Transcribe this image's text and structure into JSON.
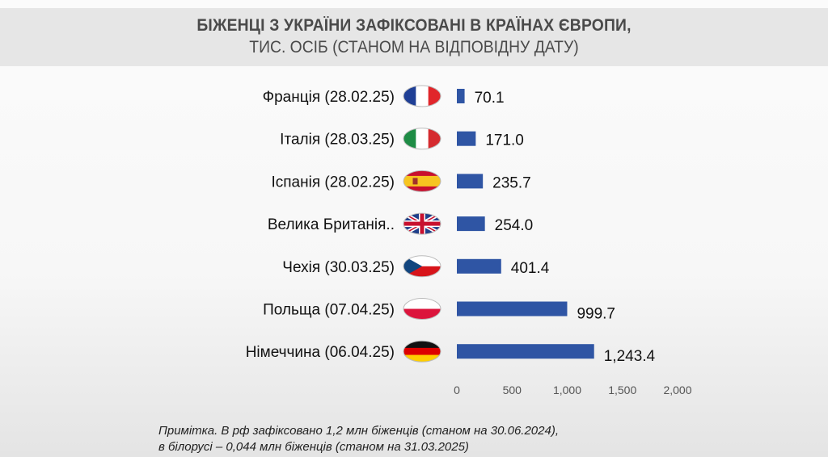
{
  "chart_data": {
    "type": "bar",
    "orientation": "horizontal",
    "title": "БІЖЕНЦІ З УКРАЇНИ ЗАФІКСОВАНІ В КРАЇНАХ ЄВРОПИ,",
    "subtitle": "ТИС. ОСІБ (СТАНОМ НА ВІДПОВІДНУ ДАТУ)",
    "categories": [
      "Франція (28.02.25)",
      "Італія (28.03.25)",
      "Іспанія (28.02.25)",
      "Велика Британія..",
      "Чехія (30.03.25)",
      "Польща (07.04.25)",
      "Німеччина (06.04.25)"
    ],
    "flags": [
      "france",
      "italy",
      "spain",
      "united-kingdom",
      "czechia",
      "poland",
      "germany"
    ],
    "values": [
      70.1,
      171.0,
      235.7,
      254.0,
      401.4,
      999.7,
      1243.4
    ],
    "data_labels": [
      "70.1",
      "171.0",
      "235.7",
      "254.0",
      "401.4",
      "999.7",
      "1,243.4"
    ],
    "xlim": [
      0,
      2000
    ],
    "xticks": [
      "0",
      "500",
      "1,000",
      "1,500",
      "2,000"
    ],
    "xtick_values": [
      0,
      500,
      1000,
      1500,
      2000
    ],
    "grid": false,
    "bar_color": "#2f55a4"
  },
  "note": {
    "line1": "Примітка. В рф зафіксовано 1,2 млн біженців (станом на 30.06.2024),",
    "line2": "в білорусі – 0,044 млн біженців (станом на 31.03.2025)"
  }
}
